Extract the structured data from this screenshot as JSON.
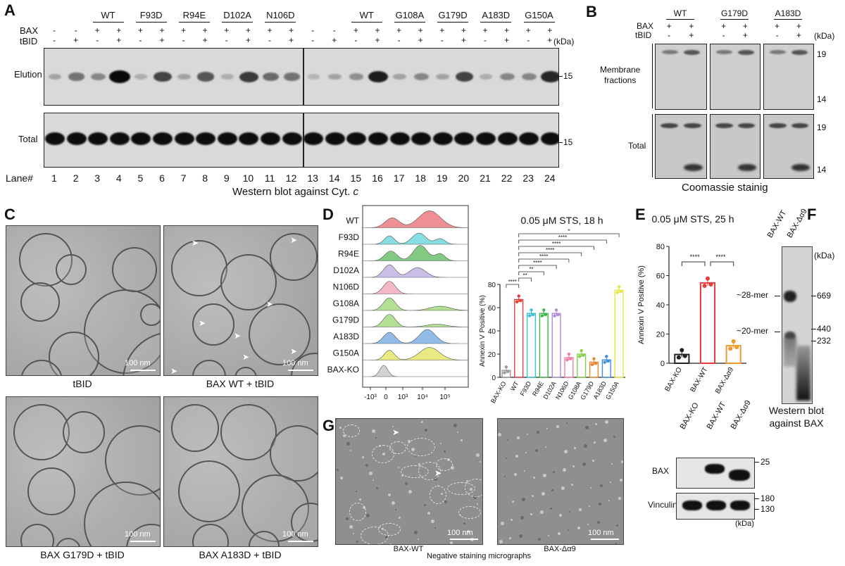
{
  "panels": {
    "A": "A",
    "B": "B",
    "C": "C",
    "D": "D",
    "E": "E",
    "F": "F",
    "G": "G"
  },
  "panelA": {
    "bax_label": "BAX",
    "tbid_label": "tBID",
    "kda_label": "(kDa)",
    "groups_left": [
      "WT",
      "F93D",
      "R94E",
      "D102A",
      "N106D"
    ],
    "groups_right": [
      "WT",
      "G108A",
      "G179D",
      "A183D",
      "G150A"
    ],
    "bax_signs": [
      "-",
      "-",
      "+",
      "+",
      "+",
      "+",
      "+",
      "+",
      "+",
      "+",
      "+",
      "+",
      "-",
      "-",
      "+",
      "+",
      "+",
      "+",
      "+",
      "+",
      "+",
      "+",
      "+",
      "+"
    ],
    "tbid_signs": [
      "-",
      "+",
      "-",
      "+",
      "-",
      "+",
      "-",
      "+",
      "-",
      "+",
      "-",
      "+",
      "-",
      "+",
      "-",
      "+",
      "-",
      "+",
      "-",
      "+",
      "-",
      "+",
      "-",
      "+"
    ],
    "elution_label": "Elution",
    "total_label": "Total",
    "marker_elution": "15",
    "marker_total": "15",
    "lane_label": "Lane#",
    "lanes": [
      "1",
      "2",
      "3",
      "4",
      "5",
      "6",
      "7",
      "8",
      "9",
      "10",
      "11",
      "12",
      "13",
      "14",
      "15",
      "16",
      "17",
      "18",
      "19",
      "20",
      "21",
      "22",
      "23",
      "24"
    ],
    "elution_intensity": [
      0.2,
      0.45,
      0.35,
      1.0,
      0.15,
      0.7,
      0.2,
      0.6,
      0.15,
      0.75,
      0.5,
      0.45,
      0.1,
      0.2,
      0.3,
      0.9,
      0.2,
      0.35,
      0.2,
      0.7,
      0.15,
      0.35,
      0.35,
      0.85
    ],
    "caption_main": "Western blot against Cyt. ",
    "caption_italic": "c"
  },
  "panelB": {
    "bax_label": "BAX",
    "tbid_label": "tBID",
    "kda_label": "(kDa)",
    "groups": [
      "WT",
      "G179D",
      "A183D"
    ],
    "bax_signs": [
      "+",
      "+",
      "+",
      "+",
      "+",
      "+"
    ],
    "tbid_signs": [
      "-",
      "+",
      "-",
      "+",
      "-",
      "+"
    ],
    "membrane_label": "Membrane\nfractions",
    "total_label": "Total",
    "markers_top": [
      "19",
      "14"
    ],
    "markers_bottom": [
      "19",
      "14"
    ],
    "caption": "Coomassie stainig"
  },
  "panelC": {
    "labels": [
      "tBID",
      "BAX WT + tBID",
      "BAX G179D + tBID",
      "BAX A183D + tBID"
    ],
    "scale": "100 nm"
  },
  "panelD": {
    "samples": [
      "WT",
      "F93D",
      "R94E",
      "D102A",
      "N106D",
      "G108A",
      "G179D",
      "A183D",
      "G150A",
      "BAX-KO"
    ],
    "hist_colors": [
      "#e8696f",
      "#5fd1d8",
      "#5ab55a",
      "#b9a9e0",
      "#f0a0b4",
      "#9ad66e",
      "#9ad66e",
      "#6ea6e0",
      "#e3e35a",
      "#c4c4c4"
    ],
    "x_ticks": [
      "-10³",
      "0",
      "10³",
      "10⁴",
      "10⁵"
    ],
    "title": "0.05 μM STS, 18 h",
    "ylabel": "Annexin V Positive (%)",
    "y_ticks": [
      "0",
      "20",
      "40",
      "60",
      "80"
    ],
    "sig": [
      "****",
      "**",
      "**",
      "****",
      "****",
      "****",
      "****",
      "****",
      "*"
    ]
  },
  "panelE": {
    "title": "0.05 μM STS, 25 h",
    "ylabel": "Annexin V Positive (%)",
    "y_ticks": [
      "0",
      "20",
      "40",
      "60",
      "80"
    ],
    "sig": [
      "****",
      "****"
    ]
  },
  "panelF": {
    "lanes": [
      "BAX-WT",
      "BAX-Δα9"
    ],
    "kda_label": "(kDa)",
    "markers": [
      "669",
      "440",
      "232"
    ],
    "mer_labels": [
      "~28-mer",
      "~20-mer"
    ],
    "caption": "Western blot\nagainst BAX"
  },
  "panelG": {
    "labels": [
      "BAX-WT",
      "BAX-Δα9"
    ],
    "caption": "Negative staining micrographs",
    "scale": "100 nm",
    "wb_lanes": [
      "BAX-KO",
      "BAX-WT",
      "BAX-Δα9"
    ],
    "wb_rows": [
      "BAX",
      "Vinculin"
    ],
    "wb_markers_top": [
      "25"
    ],
    "wb_markers_bottom": [
      "180",
      "130"
    ],
    "kda_label": "(kDa)"
  },
  "chart_data": [
    {
      "type": "bar",
      "title": "0.05 μM STS, 18 h",
      "ylabel": "Annexin V Positive (%)",
      "ylim": [
        0,
        80
      ],
      "categories": [
        "BAX-KO",
        "WT",
        "F93D",
        "R94E",
        "D102A",
        "N106D",
        "G108A",
        "G179D",
        "A183D",
        "G150A"
      ],
      "values": [
        6,
        67,
        55,
        55,
        55,
        17,
        20,
        13,
        15,
        75
      ],
      "colors": [
        "#999999",
        "#e53b3b",
        "#39c2cf",
        "#3fb54a",
        "#b08ad6",
        "#f37ea0",
        "#7fd14a",
        "#e8862e",
        "#3d8fd9",
        "#e6e64a"
      ]
    },
    {
      "type": "bar",
      "title": "0.05 μM STS, 25 h",
      "ylabel": "Annexin V Positive (%)",
      "ylim": [
        0,
        80
      ],
      "categories": [
        "BAX-KO",
        "BAX-WT",
        "BAX-Δα9"
      ],
      "values": [
        6,
        55,
        12
      ],
      "colors": [
        "#222222",
        "#e53b3b",
        "#f39a2e"
      ]
    }
  ]
}
